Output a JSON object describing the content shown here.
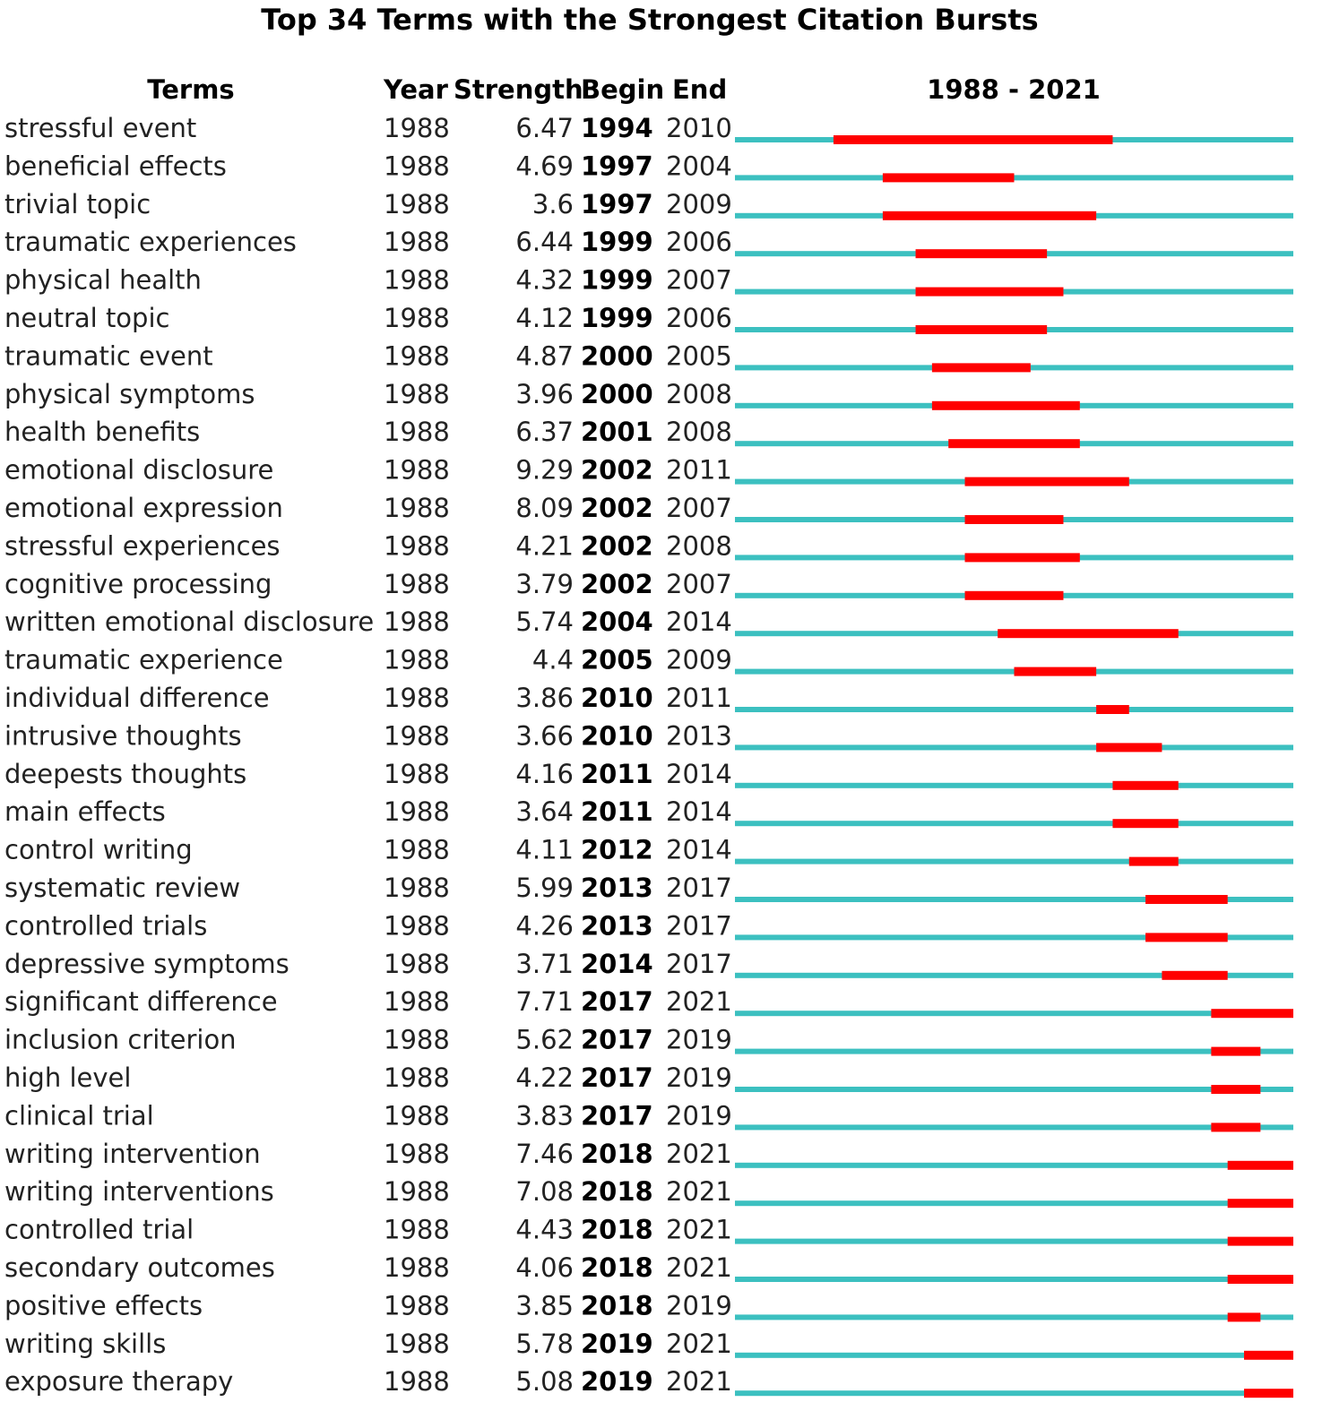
{
  "title": "Top 34 Terms with the Strongest Citation Bursts",
  "columns": [
    "Terms",
    "Year",
    "Strength",
    "Begin",
    "End"
  ],
  "timeline_label": "1988 - 2021",
  "rows": [
    [
      "stressful event",
      1988,
      6.47,
      1994,
      2010
    ],
    [
      "beneficial effects",
      1988,
      4.69,
      1997,
      2004
    ],
    [
      "trivial topic",
      1988,
      3.6,
      1997,
      2009
    ],
    [
      "traumatic experiences",
      1988,
      6.44,
      1999,
      2006
    ],
    [
      "physical health",
      1988,
      4.32,
      1999,
      2007
    ],
    [
      "neutral topic",
      1988,
      4.12,
      1999,
      2006
    ],
    [
      "traumatic event",
      1988,
      4.87,
      2000,
      2005
    ],
    [
      "physical symptoms",
      1988,
      3.96,
      2000,
      2008
    ],
    [
      "health benefits",
      1988,
      6.37,
      2001,
      2008
    ],
    [
      "emotional disclosure",
      1988,
      9.29,
      2002,
      2011
    ],
    [
      "emotional expression",
      1988,
      8.09,
      2002,
      2007
    ],
    [
      "stressful experiences",
      1988,
      4.21,
      2002,
      2008
    ],
    [
      "cognitive processing",
      1988,
      3.79,
      2002,
      2007
    ],
    [
      "written emotional disclosure",
      1988,
      5.74,
      2004,
      2014
    ],
    [
      "traumatic experience",
      1988,
      4.4,
      2005,
      2009
    ],
    [
      "individual difference",
      1988,
      3.86,
      2010,
      2011
    ],
    [
      "intrusive thoughts",
      1988,
      3.66,
      2010,
      2013
    ],
    [
      "deepests thoughts",
      1988,
      4.16,
      2011,
      2014
    ],
    [
      "main effects",
      1988,
      3.64,
      2011,
      2014
    ],
    [
      "control writing",
      1988,
      4.11,
      2012,
      2014
    ],
    [
      "systematic review",
      1988,
      5.99,
      2013,
      2017
    ],
    [
      "controlled trials",
      1988,
      4.26,
      2013,
      2017
    ],
    [
      "depressive symptoms",
      1988,
      3.71,
      2014,
      2017
    ],
    [
      "significant difference",
      1988,
      7.71,
      2017,
      2021
    ],
    [
      "inclusion criterion",
      1988,
      5.62,
      2017,
      2019
    ],
    [
      "high level",
      1988,
      4.22,
      2017,
      2019
    ],
    [
      "clinical trial",
      1988,
      3.83,
      2017,
      2019
    ],
    [
      "writing intervention",
      1988,
      7.46,
      2018,
      2021
    ],
    [
      "writing interventions",
      1988,
      7.08,
      2018,
      2021
    ],
    [
      "controlled trial",
      1988,
      4.43,
      2018,
      2021
    ],
    [
      "secondary outcomes",
      1988,
      4.06,
      2018,
      2021
    ],
    [
      "positive effects",
      1988,
      3.85,
      2018,
      2019
    ],
    [
      "writing skills",
      1988,
      5.78,
      2019,
      2021
    ],
    [
      "exposure therapy",
      1988,
      5.08,
      2019,
      2021
    ]
  ]
}
